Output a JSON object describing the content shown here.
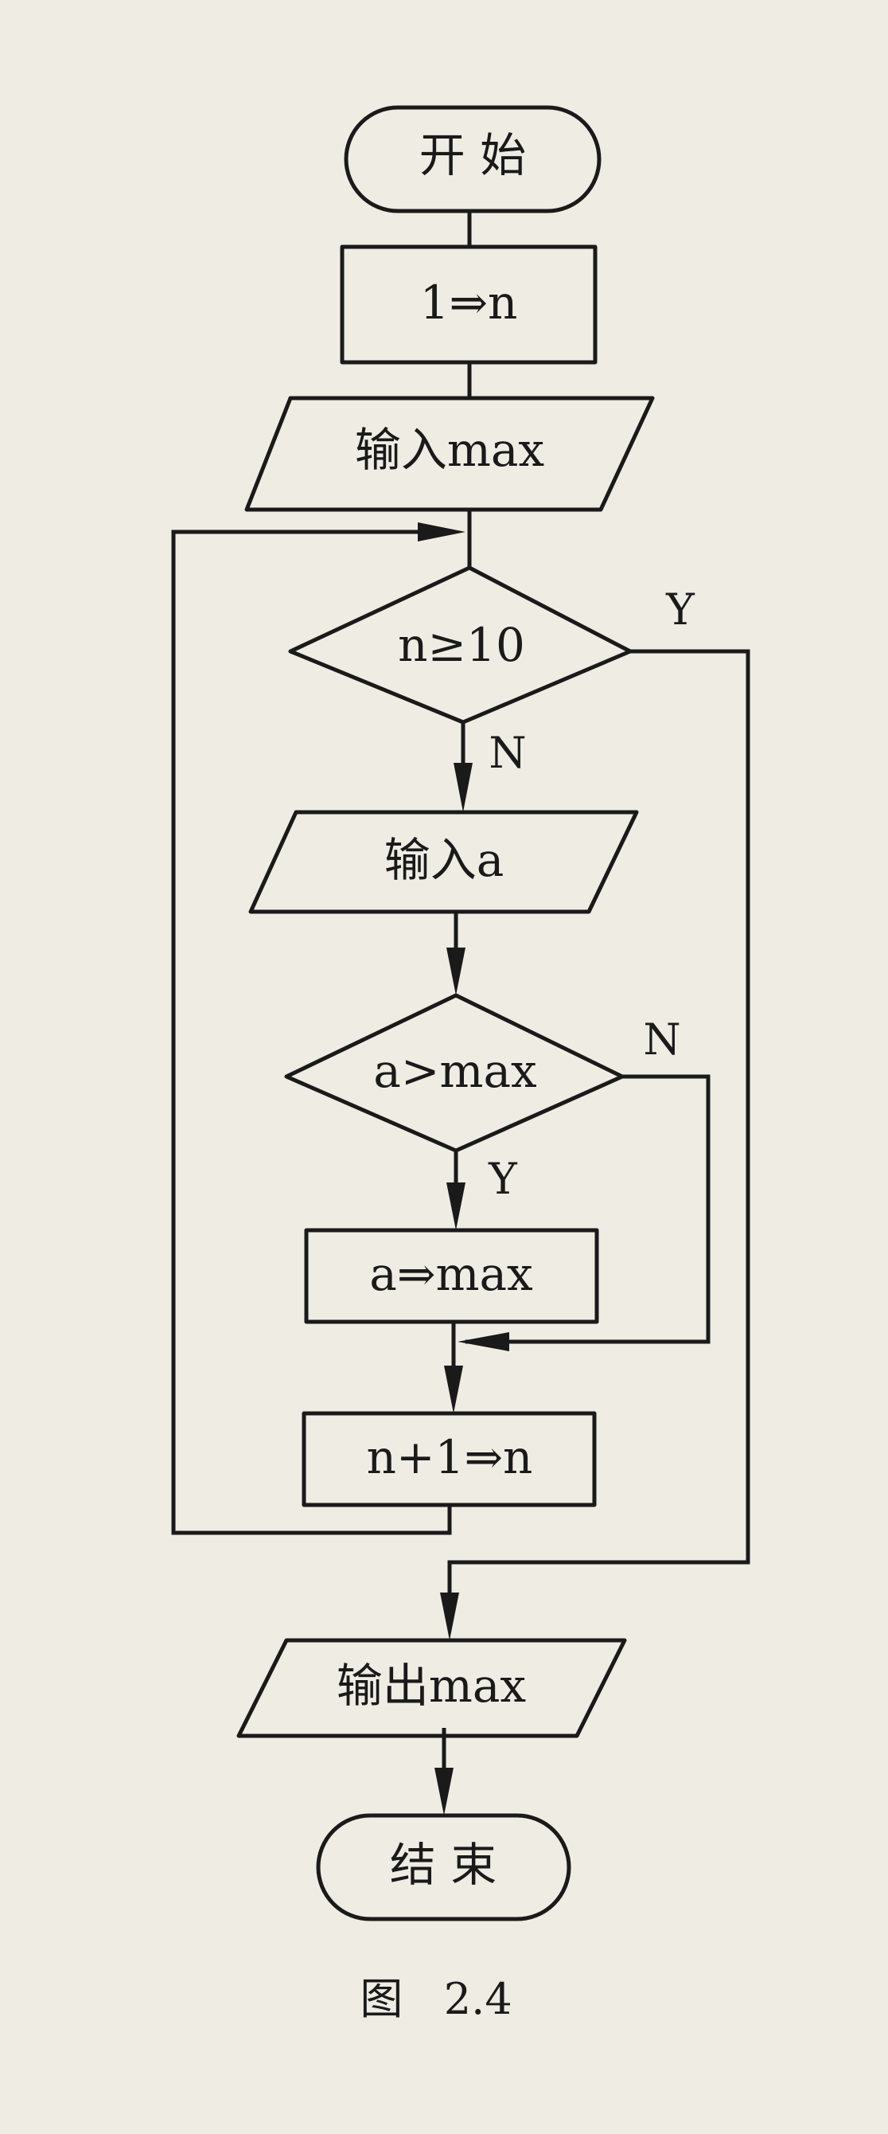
{
  "nodes": {
    "start": "开 始",
    "init": "1⇒n",
    "input_max": "输入max",
    "cond_n": "n≥10",
    "input_a": "输入a",
    "cond_a": "a>max",
    "assign": "a⇒max",
    "increment": "n+1⇒n",
    "output": "输出max",
    "end": "结 束"
  },
  "branches": {
    "cond_n_yes": "Y",
    "cond_n_no": "N",
    "cond_a_yes": "Y",
    "cond_a_no": "N"
  },
  "caption": "图   2.4",
  "colors": {
    "paper": "#efece4",
    "ink": "#1a1a1a"
  }
}
